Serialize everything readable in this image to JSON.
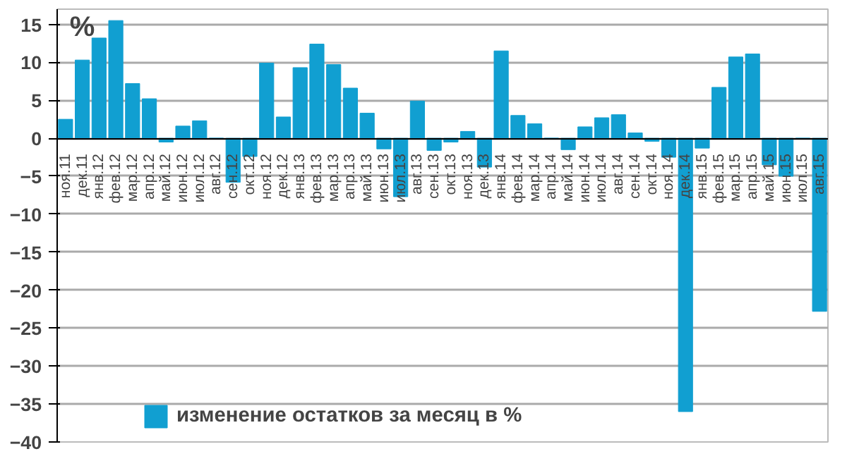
{
  "chart_data": {
    "type": "bar",
    "ylabel": "%",
    "categories": [
      "ноя.11",
      "дек.11",
      "янв.12",
      "фев.12",
      "мар.12",
      "апр.12",
      "май.12",
      "июн.12",
      "июл.12",
      "авг.12",
      "сен.12",
      "окт.12",
      "ноя.12",
      "дек.12",
      "янв.13",
      "фев.13",
      "мар.13",
      "апр.13",
      "май.13",
      "июн.13",
      "июл.13",
      "авг.13",
      "сен.13",
      "окт.13",
      "ноя.13",
      "дек.13",
      "янв.14",
      "фев.14",
      "мар.14",
      "апр.14",
      "май.14",
      "июн.14",
      "июл.14",
      "авг.14",
      "сен.14",
      "окт.14",
      "ноя.14",
      "дек.14",
      "янв.15",
      "фев.15",
      "мар.15",
      "апр.15",
      "май.15",
      "июн.15",
      "июл.15",
      "авг.15"
    ],
    "series": [
      {
        "name": "изменение остатков за месяц в %",
        "color": "#119fd1",
        "values": [
          2.5,
          10.3,
          13.2,
          15.5,
          7.2,
          5.2,
          -0.5,
          1.6,
          2.3,
          0,
          -5.8,
          -2.4,
          9.9,
          2.8,
          9.3,
          12.4,
          9.7,
          6.6,
          3.3,
          -1.4,
          -7.7,
          4.9,
          -1.6,
          -0.5,
          0.9,
          -3.8,
          11.5,
          3.0,
          1.9,
          0,
          -1.5,
          1.5,
          2.7,
          3.1,
          0.7,
          -0.4,
          -2.5,
          -36,
          -1.3,
          6.7,
          10.7,
          11.1,
          -3.5,
          -5.0,
          0,
          -22.8
        ]
      }
    ],
    "ylim": [
      -40,
      17
    ],
    "yticks": [
      -40,
      -35,
      -30,
      -25,
      -20,
      -15,
      -10,
      -5,
      0,
      5,
      10,
      15
    ],
    "grid": "y",
    "legend": "bottom left"
  }
}
